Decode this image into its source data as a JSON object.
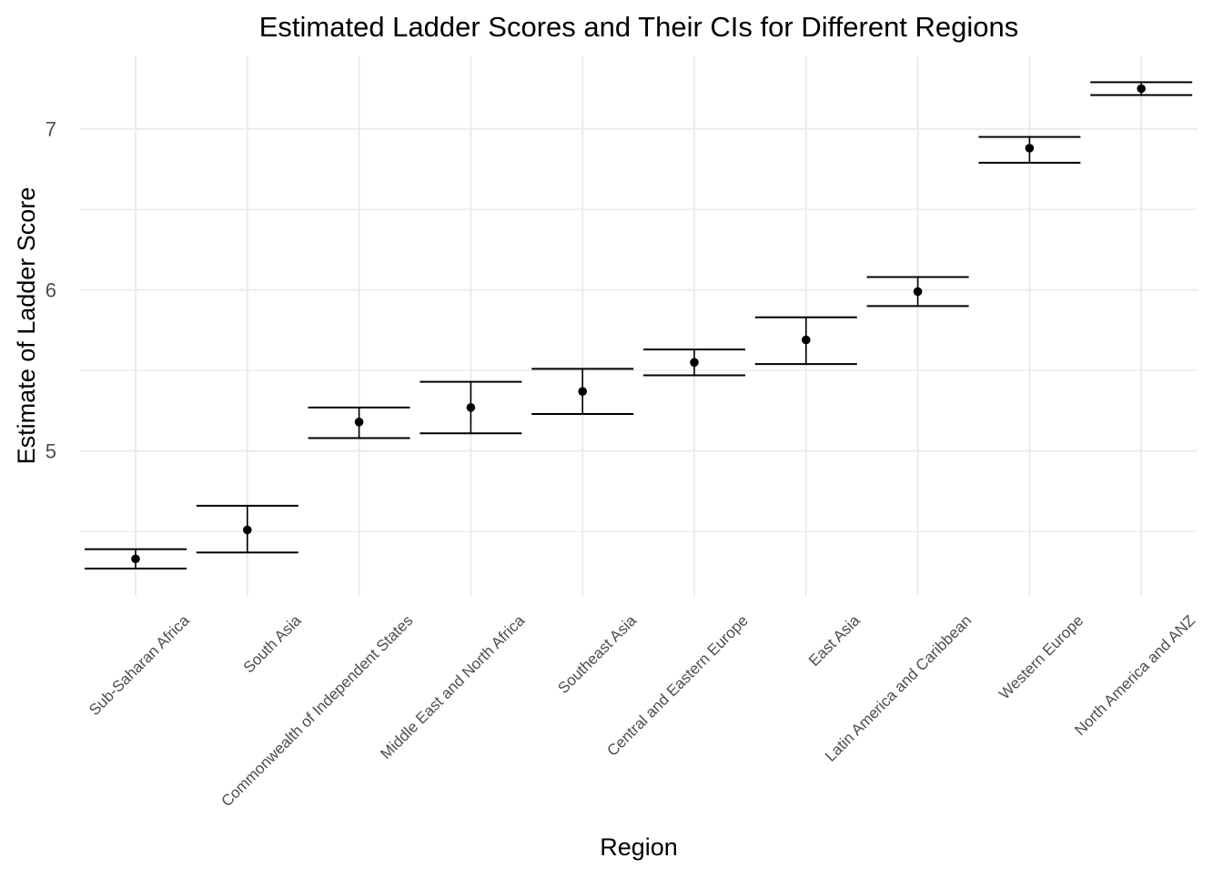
{
  "chart_data": {
    "type": "scatter",
    "title": "Estimated Ladder Scores and Their CIs for Different Regions",
    "xlabel": "Region",
    "ylabel": "Estimate of Ladder Score",
    "y_ticks": [
      5,
      6,
      7
    ],
    "ylim": [
      4.1,
      7.45
    ],
    "grid": true,
    "categories": [
      "Sub-Saharan Africa",
      "South Asia",
      "Commonwealth of Independent States",
      "Middle East and North Africa",
      "Southeast Asia",
      "Central and Eastern Europe",
      "East Asia",
      "Latin America and Caribbean",
      "Western Europe",
      "North America and ANZ"
    ],
    "estimates": [
      4.33,
      4.51,
      5.18,
      5.27,
      5.37,
      5.55,
      5.69,
      5.99,
      6.88,
      7.25
    ],
    "ci_lower": [
      4.27,
      4.37,
      5.08,
      5.11,
      5.23,
      5.47,
      5.54,
      5.9,
      6.79,
      7.21
    ],
    "ci_upper": [
      4.39,
      4.66,
      5.27,
      5.43,
      5.51,
      5.63,
      5.83,
      6.08,
      6.95,
      7.29
    ],
    "point_color": "#000000",
    "errorbar_color": "#000000",
    "grid_color": "#ebebeb"
  }
}
